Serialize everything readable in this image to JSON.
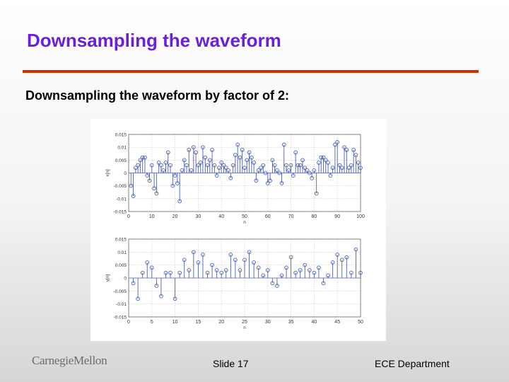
{
  "slide": {
    "title": "Downsampling the waveform",
    "subtitle": "Downsampling the waveform by factor of 2:",
    "footer_logo": "CarnegieMellon",
    "footer_slide": "Slide 17",
    "footer_dept": "ECE Department"
  },
  "colors": {
    "title": "#6a1fd8",
    "rule": "#cc3300",
    "stem": "#4a5fb0",
    "grid": "#c8c8c8"
  },
  "chart_data": [
    {
      "type": "stem",
      "title": "",
      "xlabel": "n",
      "ylabel": "x[n]",
      "xlim": [
        0,
        100
      ],
      "ylim": [
        -0.015,
        0.015
      ],
      "xticks": [
        0,
        10,
        20,
        30,
        40,
        50,
        60,
        70,
        80,
        90,
        100
      ],
      "yticks": [
        -0.015,
        -0.01,
        -0.005,
        0,
        0.005,
        0.01,
        0.015
      ],
      "ytick_labels": [
        "-0.015",
        "-0.01",
        "-0.005",
        "0",
        "0.005",
        "0.01",
        "0.015"
      ],
      "grid": true,
      "x": [
        1,
        2,
        3,
        4,
        5,
        6,
        7,
        8,
        9,
        10,
        11,
        12,
        13,
        14,
        15,
        16,
        17,
        18,
        19,
        20,
        21,
        22,
        23,
        24,
        25,
        26,
        27,
        28,
        29,
        30,
        31,
        32,
        33,
        34,
        35,
        36,
        37,
        38,
        39,
        40,
        41,
        42,
        43,
        44,
        45,
        46,
        47,
        48,
        49,
        50,
        51,
        52,
        53,
        54,
        55,
        56,
        57,
        58,
        59,
        60,
        61,
        62,
        63,
        64,
        65,
        66,
        67,
        68,
        69,
        70,
        71,
        72,
        73,
        74,
        75,
        76,
        77,
        78,
        79,
        80,
        81,
        82,
        83,
        84,
        85,
        86,
        87,
        88,
        89,
        90,
        91,
        92,
        93,
        94,
        95,
        96,
        97,
        98,
        99,
        100
      ],
      "values": [
        -0.005,
        -0.009,
        0.002,
        0.003,
        0.005,
        0.006,
        0.006,
        -0.001,
        -0.003,
        0.003,
        -0.006,
        -0.008,
        0.004,
        0.003,
        0.001,
        0.004,
        0.008,
        0.003,
        -0.005,
        -0.001,
        -0.004,
        -0.011,
        0.001,
        0.005,
        0.003,
        0.009,
        0.001,
        0.01,
        0.008,
        0.003,
        0.004,
        0.01,
        0.006,
        0.003,
        0.005,
        0.009,
        0.003,
        -0.001,
        0.002,
        0.004,
        0.003,
        0.002,
        0.001,
        -0.002,
        0.003,
        0.007,
        0.011,
        0.006,
        0.009,
        0.002,
        0.005,
        0.008,
        0.006,
        0.004,
        -0.003,
        0.001,
        0.002,
        0.003,
        0.0,
        -0.004,
        -0.003,
        0.005,
        0.003,
        0.001,
        0.0,
        -0.004,
        0.011,
        0.003,
        0.001,
        0.003,
        -0.001,
        0.008,
        0.003,
        0.003,
        0.005,
        0.002,
        0.001,
        0.0,
        -0.002,
        0.001,
        -0.008,
        0.004,
        0.006,
        0.006,
        0.005,
        0.004,
        -0.001,
        0.002,
        0.011,
        0.012,
        0.003,
        0.002,
        0.01,
        0.009,
        0.002,
        0.003,
        0.009,
        0.007,
        0.004,
        0.002
      ]
    },
    {
      "type": "stem",
      "title": "",
      "xlabel": "n",
      "ylabel": "y[n]",
      "xlim": [
        0,
        50
      ],
      "ylim": [
        -0.015,
        0.015
      ],
      "xticks": [
        0,
        5,
        10,
        15,
        20,
        25,
        30,
        35,
        40,
        45,
        50
      ],
      "yticks": [
        -0.015,
        -0.01,
        -0.005,
        0,
        0.005,
        0.01,
        0.015
      ],
      "ytick_labels": [
        "-0.015",
        "-0.01",
        "-0.005",
        "0",
        "0.005",
        "0.01",
        "0.015"
      ],
      "grid": true,
      "x": [
        1,
        2,
        3,
        4,
        5,
        6,
        7,
        8,
        9,
        10,
        11,
        12,
        13,
        14,
        15,
        16,
        17,
        18,
        19,
        20,
        21,
        22,
        23,
        24,
        25,
        26,
        27,
        28,
        29,
        30,
        31,
        32,
        33,
        34,
        35,
        36,
        37,
        38,
        39,
        40,
        41,
        42,
        43,
        44,
        45,
        46,
        47,
        48,
        49,
        50
      ],
      "values": [
        -0.002,
        -0.008,
        0.002,
        0.006,
        0.004,
        -0.003,
        -0.007,
        0.002,
        0.002,
        -0.008,
        0.002,
        0.007,
        0.003,
        0.01,
        0.006,
        0.009,
        0.002,
        0.005,
        0.003,
        0.002,
        0.003,
        0.009,
        0.007,
        0.003,
        0.007,
        0.01,
        0.006,
        0.004,
        0.001,
        0.003,
        -0.002,
        -0.003,
        0.001,
        0.004,
        0.008,
        0.002,
        0.003,
        0.005,
        0.003,
        0.002,
        0.004,
        -0.002,
        0.001,
        0.006,
        0.009,
        0.007,
        0.008,
        0.002,
        0.011,
        0.002
      ]
    }
  ]
}
